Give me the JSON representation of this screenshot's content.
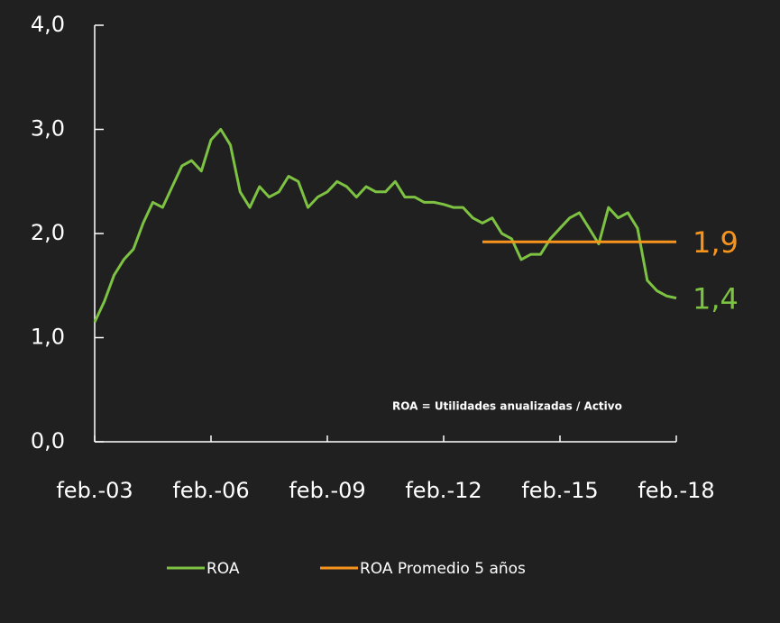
{
  "chart_data": {
    "type": "line",
    "x": [
      "2003-02",
      "2003-05",
      "2003-08",
      "2003-11",
      "2004-02",
      "2004-05",
      "2004-08",
      "2004-11",
      "2005-02",
      "2005-05",
      "2005-08",
      "2005-11",
      "2006-02",
      "2006-05",
      "2006-08",
      "2006-11",
      "2007-02",
      "2007-05",
      "2007-08",
      "2007-11",
      "2008-02",
      "2008-05",
      "2008-08",
      "2008-11",
      "2009-02",
      "2009-05",
      "2009-08",
      "2009-11",
      "2010-02",
      "2010-05",
      "2010-08",
      "2010-11",
      "2011-02",
      "2011-05",
      "2011-08",
      "2011-11",
      "2012-02",
      "2012-05",
      "2012-08",
      "2012-11",
      "2013-02",
      "2013-05",
      "2013-08",
      "2013-11",
      "2014-02",
      "2014-05",
      "2014-08",
      "2014-11",
      "2015-02",
      "2015-05",
      "2015-08",
      "2015-11",
      "2016-02",
      "2016-05",
      "2016-08",
      "2016-11",
      "2017-02",
      "2017-05",
      "2017-08",
      "2017-11",
      "2018-02"
    ],
    "series": [
      {
        "name": "ROA",
        "color": "#7dc242",
        "values": [
          1.15,
          1.35,
          1.6,
          1.75,
          1.85,
          2.1,
          2.3,
          2.25,
          2.45,
          2.65,
          2.7,
          2.6,
          2.9,
          3.0,
          2.85,
          2.4,
          2.25,
          2.45,
          2.35,
          2.4,
          2.55,
          2.5,
          2.25,
          2.35,
          2.4,
          2.5,
          2.45,
          2.35,
          2.45,
          2.4,
          2.4,
          2.5,
          2.35,
          2.35,
          2.3,
          2.3,
          2.28,
          2.25,
          2.25,
          2.15,
          2.1,
          2.15,
          2.0,
          1.95,
          1.75,
          1.8,
          1.8,
          1.95,
          2.05,
          2.15,
          2.2,
          2.05,
          1.9,
          2.25,
          2.15,
          2.2,
          2.05,
          1.55,
          1.45,
          1.4,
          1.38
        ],
        "value_labels": [
          null,
          null,
          null,
          null,
          null,
          null,
          null,
          null,
          null,
          null,
          null,
          null,
          null,
          null,
          null,
          null,
          null,
          null,
          null,
          null,
          null,
          null,
          null,
          null,
          null,
          null,
          null,
          null,
          null,
          null,
          null,
          null,
          null,
          null,
          null,
          null,
          null,
          null,
          null,
          null,
          null,
          null,
          null,
          null,
          null,
          null,
          null,
          null,
          null,
          null,
          null,
          null,
          null,
          null,
          null,
          null,
          null,
          null,
          null,
          null,
          "1,4"
        ]
      },
      {
        "name": "ROA Promedio 5 años",
        "color": "#f7941d",
        "x": [
          "2013-02",
          "2018-02"
        ],
        "values": [
          1.92,
          1.92
        ],
        "value_labels": [
          null,
          "1,9"
        ]
      }
    ],
    "xlim": [
      "2003-02",
      "2018-02"
    ],
    "xticks": [
      {
        "value": "2003-02",
        "label": "feb.-03"
      },
      {
        "value": "2006-02",
        "label": "feb.-06"
      },
      {
        "value": "2009-02",
        "label": "feb.-09"
      },
      {
        "value": "2012-02",
        "label": "feb.-12"
      },
      {
        "value": "2015-02",
        "label": "feb.-15"
      },
      {
        "value": "2018-02",
        "label": "feb.-18"
      }
    ],
    "ylim": [
      0,
      4
    ],
    "yticks": [
      {
        "value": 0,
        "label": "0,0"
      },
      {
        "value": 1,
        "label": "1,0"
      },
      {
        "value": 2,
        "label": "2,0"
      },
      {
        "value": 3,
        "label": "3,0"
      },
      {
        "value": 4,
        "label": "4,0"
      }
    ],
    "annotation": "ROA = Utilidades anualizadas / Activo",
    "legend": "bottom"
  }
}
